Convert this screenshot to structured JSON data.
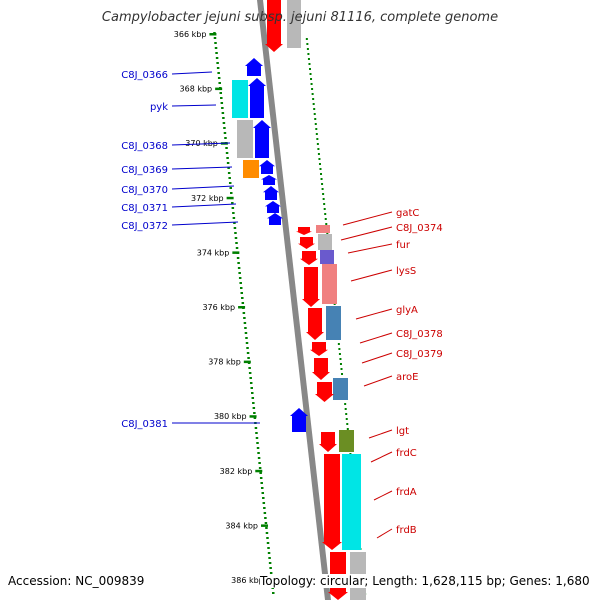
{
  "title": "Campylobacter jejuni subsp. jejuni 81116, complete genome",
  "accession": "Accession: NC_009839",
  "summary": "Topology: circular; Length: 1,628,115 bp; Genes: 1,680",
  "colors": {
    "forward": "#0000ff",
    "reverse": "#ff0000",
    "tick": "#008000",
    "backbone": "#888888",
    "cog_cyan": "#00e5e5",
    "cog_grey": "#b8b8b8",
    "cog_orange": "#ff8c00",
    "cog_pink": "#f08080",
    "cog_slate": "#6a5acd",
    "cog_steel": "#4682b4",
    "cog_olive": "#6b8e23"
  },
  "ticks": [
    "366 kbp",
    "368 kbp",
    "370 kbp",
    "372 kbp",
    "374 kbp",
    "376 kbp",
    "378 kbp",
    "380 kbp",
    "382 kbp",
    "384 kbp",
    "386 kbp"
  ],
  "left_genes": [
    "C8J_0366",
    "pyk",
    "C8J_0368",
    "C8J_0369",
    "C8J_0370",
    "C8J_0371",
    "C8J_0372",
    "C8J_0381"
  ],
  "right_genes": [
    "gatC",
    "C8J_0374",
    "fur",
    "lysS",
    "glyA",
    "C8J_0378",
    "C8J_0379",
    "aroE",
    "lgt",
    "frdC",
    "frdA",
    "frdB"
  ]
}
